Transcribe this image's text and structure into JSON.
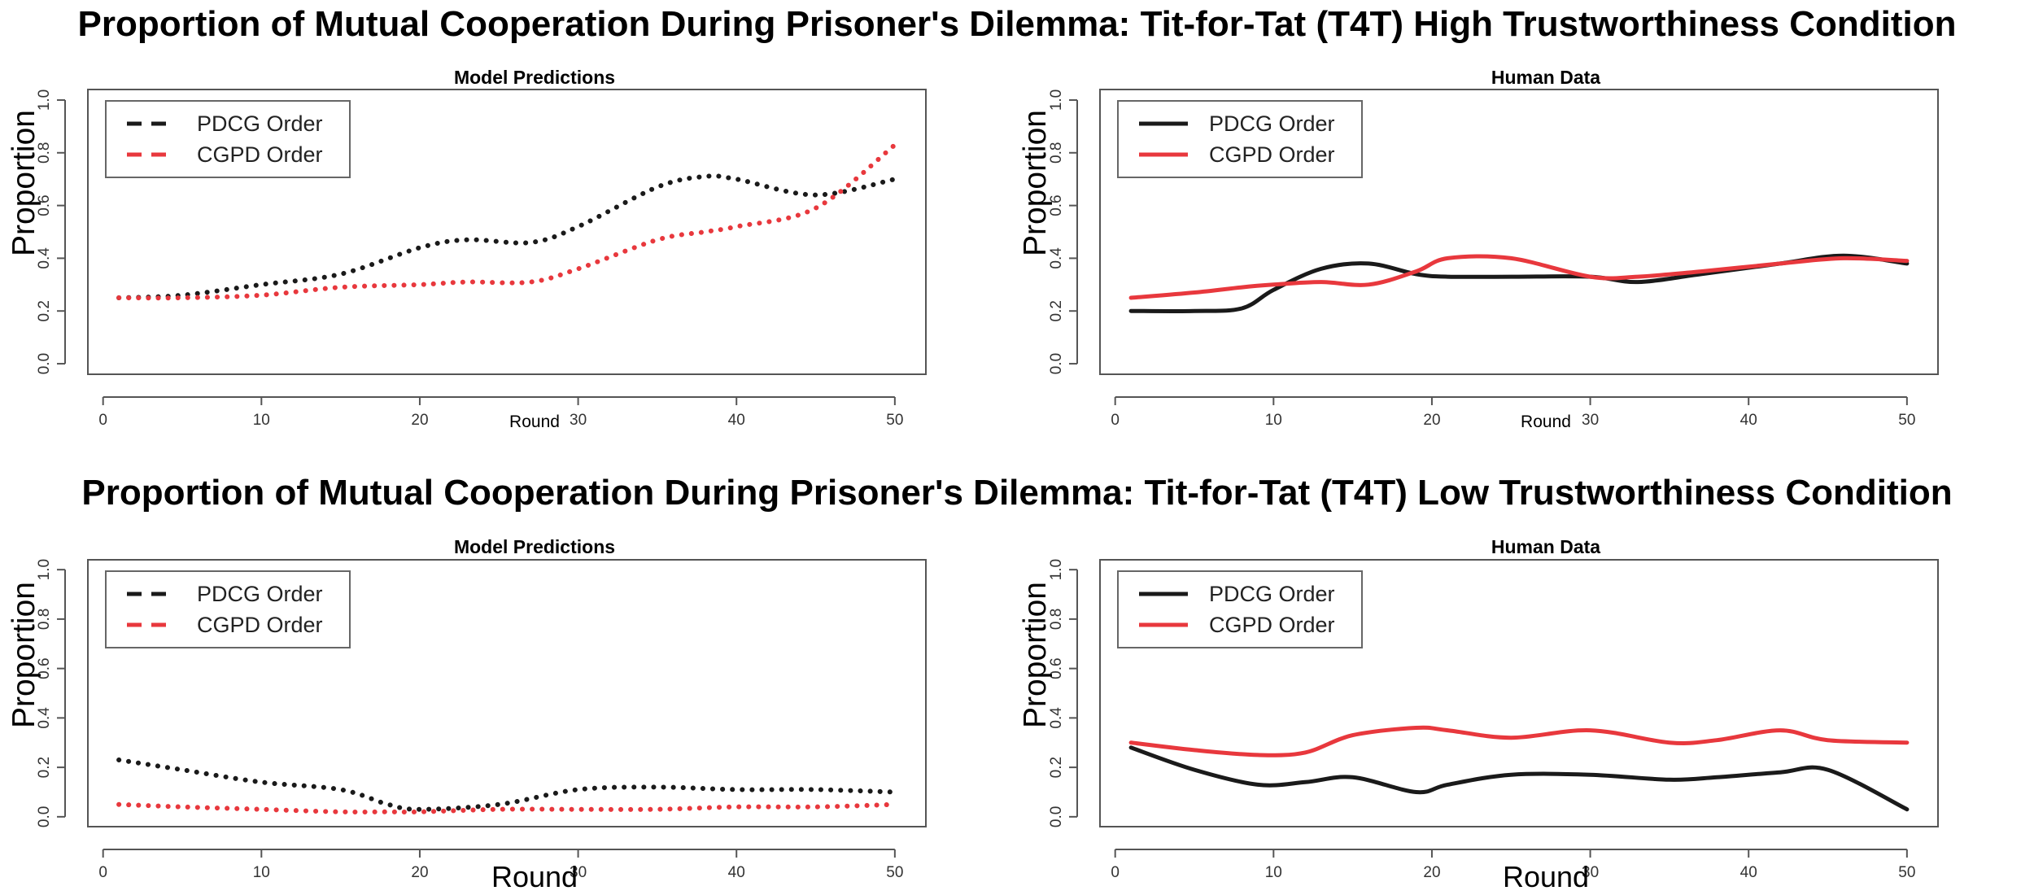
{
  "section_titles": [
    "Proportion of Mutual Cooperation During Prisoner's Dilemma: Tit-for-Tat (T4T) High Trustworthiness Condition",
    "Proportion of Mutual Cooperation During Prisoner's Dilemma: Tit-for-Tat (T4T) Low Trustworthiness Condition"
  ],
  "colors": {
    "pdcg": "#1a1a1a",
    "cgpd": "#e8383d"
  },
  "chart_data": [
    {
      "type": "line",
      "title": "Model Predictions",
      "xlabel": "Round",
      "ylabel": "Proportion",
      "xlim": [
        1,
        50
      ],
      "ylim": [
        0,
        1
      ],
      "xticks": [
        0,
        10,
        20,
        30,
        40,
        50
      ],
      "yticks": [
        0.0,
        0.2,
        0.4,
        0.6,
        0.8,
        1.0
      ],
      "line_style": "dotted",
      "legend_position": "top-left",
      "x": [
        1,
        5,
        10,
        15,
        20,
        23,
        27,
        30,
        35,
        38,
        40,
        45,
        50
      ],
      "series": [
        {
          "name": "PDCG Order",
          "values": [
            0.25,
            0.26,
            0.3,
            0.34,
            0.44,
            0.47,
            0.46,
            0.52,
            0.67,
            0.71,
            0.7,
            0.64,
            0.7
          ]
        },
        {
          "name": "CGPD Order",
          "values": [
            0.25,
            0.25,
            0.26,
            0.29,
            0.3,
            0.31,
            0.31,
            0.36,
            0.47,
            0.5,
            0.52,
            0.59,
            0.83
          ]
        }
      ]
    },
    {
      "type": "line",
      "title": "Human Data",
      "xlabel": "Round",
      "ylabel": "Proportion",
      "xlim": [
        1,
        50
      ],
      "ylim": [
        0,
        1
      ],
      "xticks": [
        0,
        10,
        20,
        30,
        40,
        50
      ],
      "yticks": [
        0.0,
        0.2,
        0.4,
        0.6,
        0.8,
        1.0
      ],
      "line_style": "solid",
      "legend_position": "top-left",
      "x": [
        1,
        5,
        8,
        10,
        13,
        16,
        19,
        21,
        25,
        30,
        33,
        37,
        42,
        46,
        50
      ],
      "series": [
        {
          "name": "PDCG Order",
          "values": [
            0.2,
            0.2,
            0.21,
            0.28,
            0.36,
            0.38,
            0.34,
            0.33,
            0.33,
            0.33,
            0.31,
            0.34,
            0.38,
            0.41,
            0.38
          ]
        },
        {
          "name": "CGPD Order",
          "values": [
            0.25,
            0.27,
            0.29,
            0.3,
            0.31,
            0.3,
            0.35,
            0.4,
            0.4,
            0.33,
            0.33,
            0.35,
            0.38,
            0.4,
            0.39
          ]
        }
      ]
    },
    {
      "type": "line",
      "title": "Model Predictions",
      "xlabel": "Round",
      "ylabel": "Proportion",
      "xlim": [
        1,
        50
      ],
      "ylim": [
        0,
        1
      ],
      "xticks": [
        0,
        10,
        20,
        30,
        40,
        50
      ],
      "yticks": [
        0.0,
        0.2,
        0.4,
        0.6,
        0.8,
        1.0
      ],
      "line_style": "dotted",
      "legend_position": "top-left",
      "x": [
        1,
        5,
        10,
        15,
        18,
        20,
        25,
        30,
        35,
        40,
        45,
        50
      ],
      "series": [
        {
          "name": "PDCG Order",
          "values": [
            0.23,
            0.19,
            0.14,
            0.11,
            0.05,
            0.03,
            0.05,
            0.11,
            0.12,
            0.11,
            0.11,
            0.1
          ]
        },
        {
          "name": "CGPD Order",
          "values": [
            0.05,
            0.04,
            0.03,
            0.02,
            0.02,
            0.02,
            0.03,
            0.03,
            0.03,
            0.04,
            0.04,
            0.05
          ]
        }
      ]
    },
    {
      "type": "line",
      "title": "Human Data",
      "xlabel": "Round",
      "ylabel": "Proportion",
      "xlim": [
        1,
        50
      ],
      "ylim": [
        0,
        1
      ],
      "xticks": [
        0,
        10,
        20,
        30,
        40,
        50
      ],
      "yticks": [
        0.0,
        0.2,
        0.4,
        0.6,
        0.8,
        1.0
      ],
      "line_style": "solid",
      "legend_position": "top-left",
      "x": [
        1,
        5,
        9,
        12,
        15,
        19,
        21,
        25,
        30,
        35,
        38,
        42,
        45,
        50
      ],
      "series": [
        {
          "name": "PDCG Order",
          "values": [
            0.28,
            0.19,
            0.13,
            0.14,
            0.16,
            0.1,
            0.13,
            0.17,
            0.17,
            0.15,
            0.16,
            0.18,
            0.19,
            0.03
          ]
        },
        {
          "name": "CGPD Order",
          "values": [
            0.3,
            0.27,
            0.25,
            0.26,
            0.33,
            0.36,
            0.35,
            0.32,
            0.35,
            0.3,
            0.31,
            0.35,
            0.31,
            0.3
          ]
        }
      ]
    }
  ]
}
